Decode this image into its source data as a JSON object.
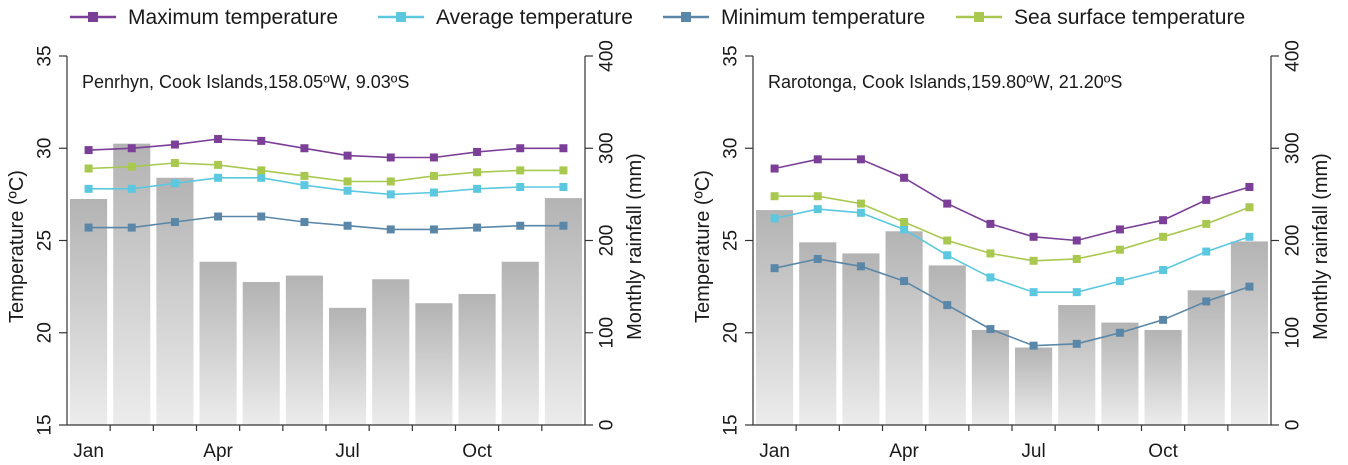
{
  "legend": [
    {
      "label": "Maximum temperature",
      "color": "#7b3f98"
    },
    {
      "label": "Average temperature",
      "color": "#5bc8e0"
    },
    {
      "label": "Minimum temperature",
      "color": "#5a87a8"
    },
    {
      "label": "Sea surface temperature",
      "color": "#a8c850"
    }
  ],
  "colors": {
    "bar_top": "#b3b3b3",
    "bar_bottom": "#ececec",
    "axis": "#333333"
  },
  "chart_data": [
    {
      "type": "bar+line",
      "title": "Penrhyn, Cook Islands,158.05ºW, 9.03ºS",
      "ylabel": "Temperature (ºC)",
      "y2label": "Monthly rainfall (mm)",
      "ylim": [
        15,
        35
      ],
      "y2lim": [
        0,
        400
      ],
      "yticks": [
        "15",
        "20",
        "25",
        "30",
        "35"
      ],
      "y2ticks": [
        "0",
        "100",
        "200",
        "300",
        "400"
      ],
      "categories": [
        "Jan",
        "Feb",
        "Mar",
        "Apr",
        "May",
        "Jun",
        "Jul",
        "Aug",
        "Sep",
        "Oct",
        "Nov",
        "Dec"
      ],
      "xtick_labels": [
        "Jan",
        "",
        "",
        "Apr",
        "",
        "",
        "Jul",
        "",
        "",
        "Oct",
        "",
        ""
      ],
      "rainfall": [
        245,
        305,
        268,
        177,
        155,
        162,
        127,
        158,
        132,
        142,
        177,
        246
      ],
      "series": [
        {
          "name": "Maximum temperature",
          "values": [
            29.9,
            30.0,
            30.2,
            30.5,
            30.4,
            30.0,
            29.6,
            29.5,
            29.5,
            29.8,
            30.0,
            30.0
          ]
        },
        {
          "name": "Average temperature",
          "values": [
            27.8,
            27.8,
            28.1,
            28.4,
            28.4,
            28.0,
            27.7,
            27.5,
            27.6,
            27.8,
            27.9,
            27.9
          ]
        },
        {
          "name": "Minimum temperature",
          "values": [
            25.7,
            25.7,
            26.0,
            26.3,
            26.3,
            26.0,
            25.8,
            25.6,
            25.6,
            25.7,
            25.8,
            25.8
          ]
        },
        {
          "name": "Sea surface temperature",
          "values": [
            28.9,
            29.0,
            29.2,
            29.1,
            28.8,
            28.5,
            28.2,
            28.2,
            28.5,
            28.7,
            28.8,
            28.8
          ]
        }
      ]
    },
    {
      "type": "bar+line",
      "title": "Rarotonga, Cook Islands,159.80ºW, 21.20ºS",
      "ylabel": "Temperature (ºC)",
      "y2label": "Monthly rainfall (mm)",
      "ylim": [
        15,
        35
      ],
      "y2lim": [
        0,
        400
      ],
      "yticks": [
        "15",
        "20",
        "25",
        "30",
        "35"
      ],
      "y2ticks": [
        "0",
        "100",
        "200",
        "300",
        "400"
      ],
      "categories": [
        "Jan",
        "Feb",
        "Mar",
        "Apr",
        "May",
        "Jun",
        "Jul",
        "Aug",
        "Sep",
        "Oct",
        "Nov",
        "Dec"
      ],
      "xtick_labels": [
        "Jan",
        "",
        "",
        "Apr",
        "",
        "",
        "Jul",
        "",
        "",
        "Oct",
        "",
        ""
      ],
      "rainfall": [
        233,
        198,
        186,
        210,
        173,
        103,
        84,
        130,
        111,
        103,
        146,
        199
      ],
      "series": [
        {
          "name": "Maximum temperature",
          "values": [
            28.9,
            29.4,
            29.4,
            28.4,
            27.0,
            25.9,
            25.2,
            25.0,
            25.6,
            26.1,
            27.2,
            27.9
          ]
        },
        {
          "name": "Average temperature",
          "values": [
            26.2,
            26.7,
            26.5,
            25.6,
            24.2,
            23.0,
            22.2,
            22.2,
            22.8,
            23.4,
            24.4,
            25.2
          ]
        },
        {
          "name": "Minimum temperature",
          "values": [
            23.5,
            24.0,
            23.6,
            22.8,
            21.5,
            20.2,
            19.3,
            19.4,
            20.0,
            20.7,
            21.7,
            22.5
          ]
        },
        {
          "name": "Sea surface temperature",
          "values": [
            27.4,
            27.4,
            27.0,
            26.0,
            25.0,
            24.3,
            23.9,
            24.0,
            24.5,
            25.2,
            25.9,
            26.8
          ]
        }
      ]
    }
  ]
}
